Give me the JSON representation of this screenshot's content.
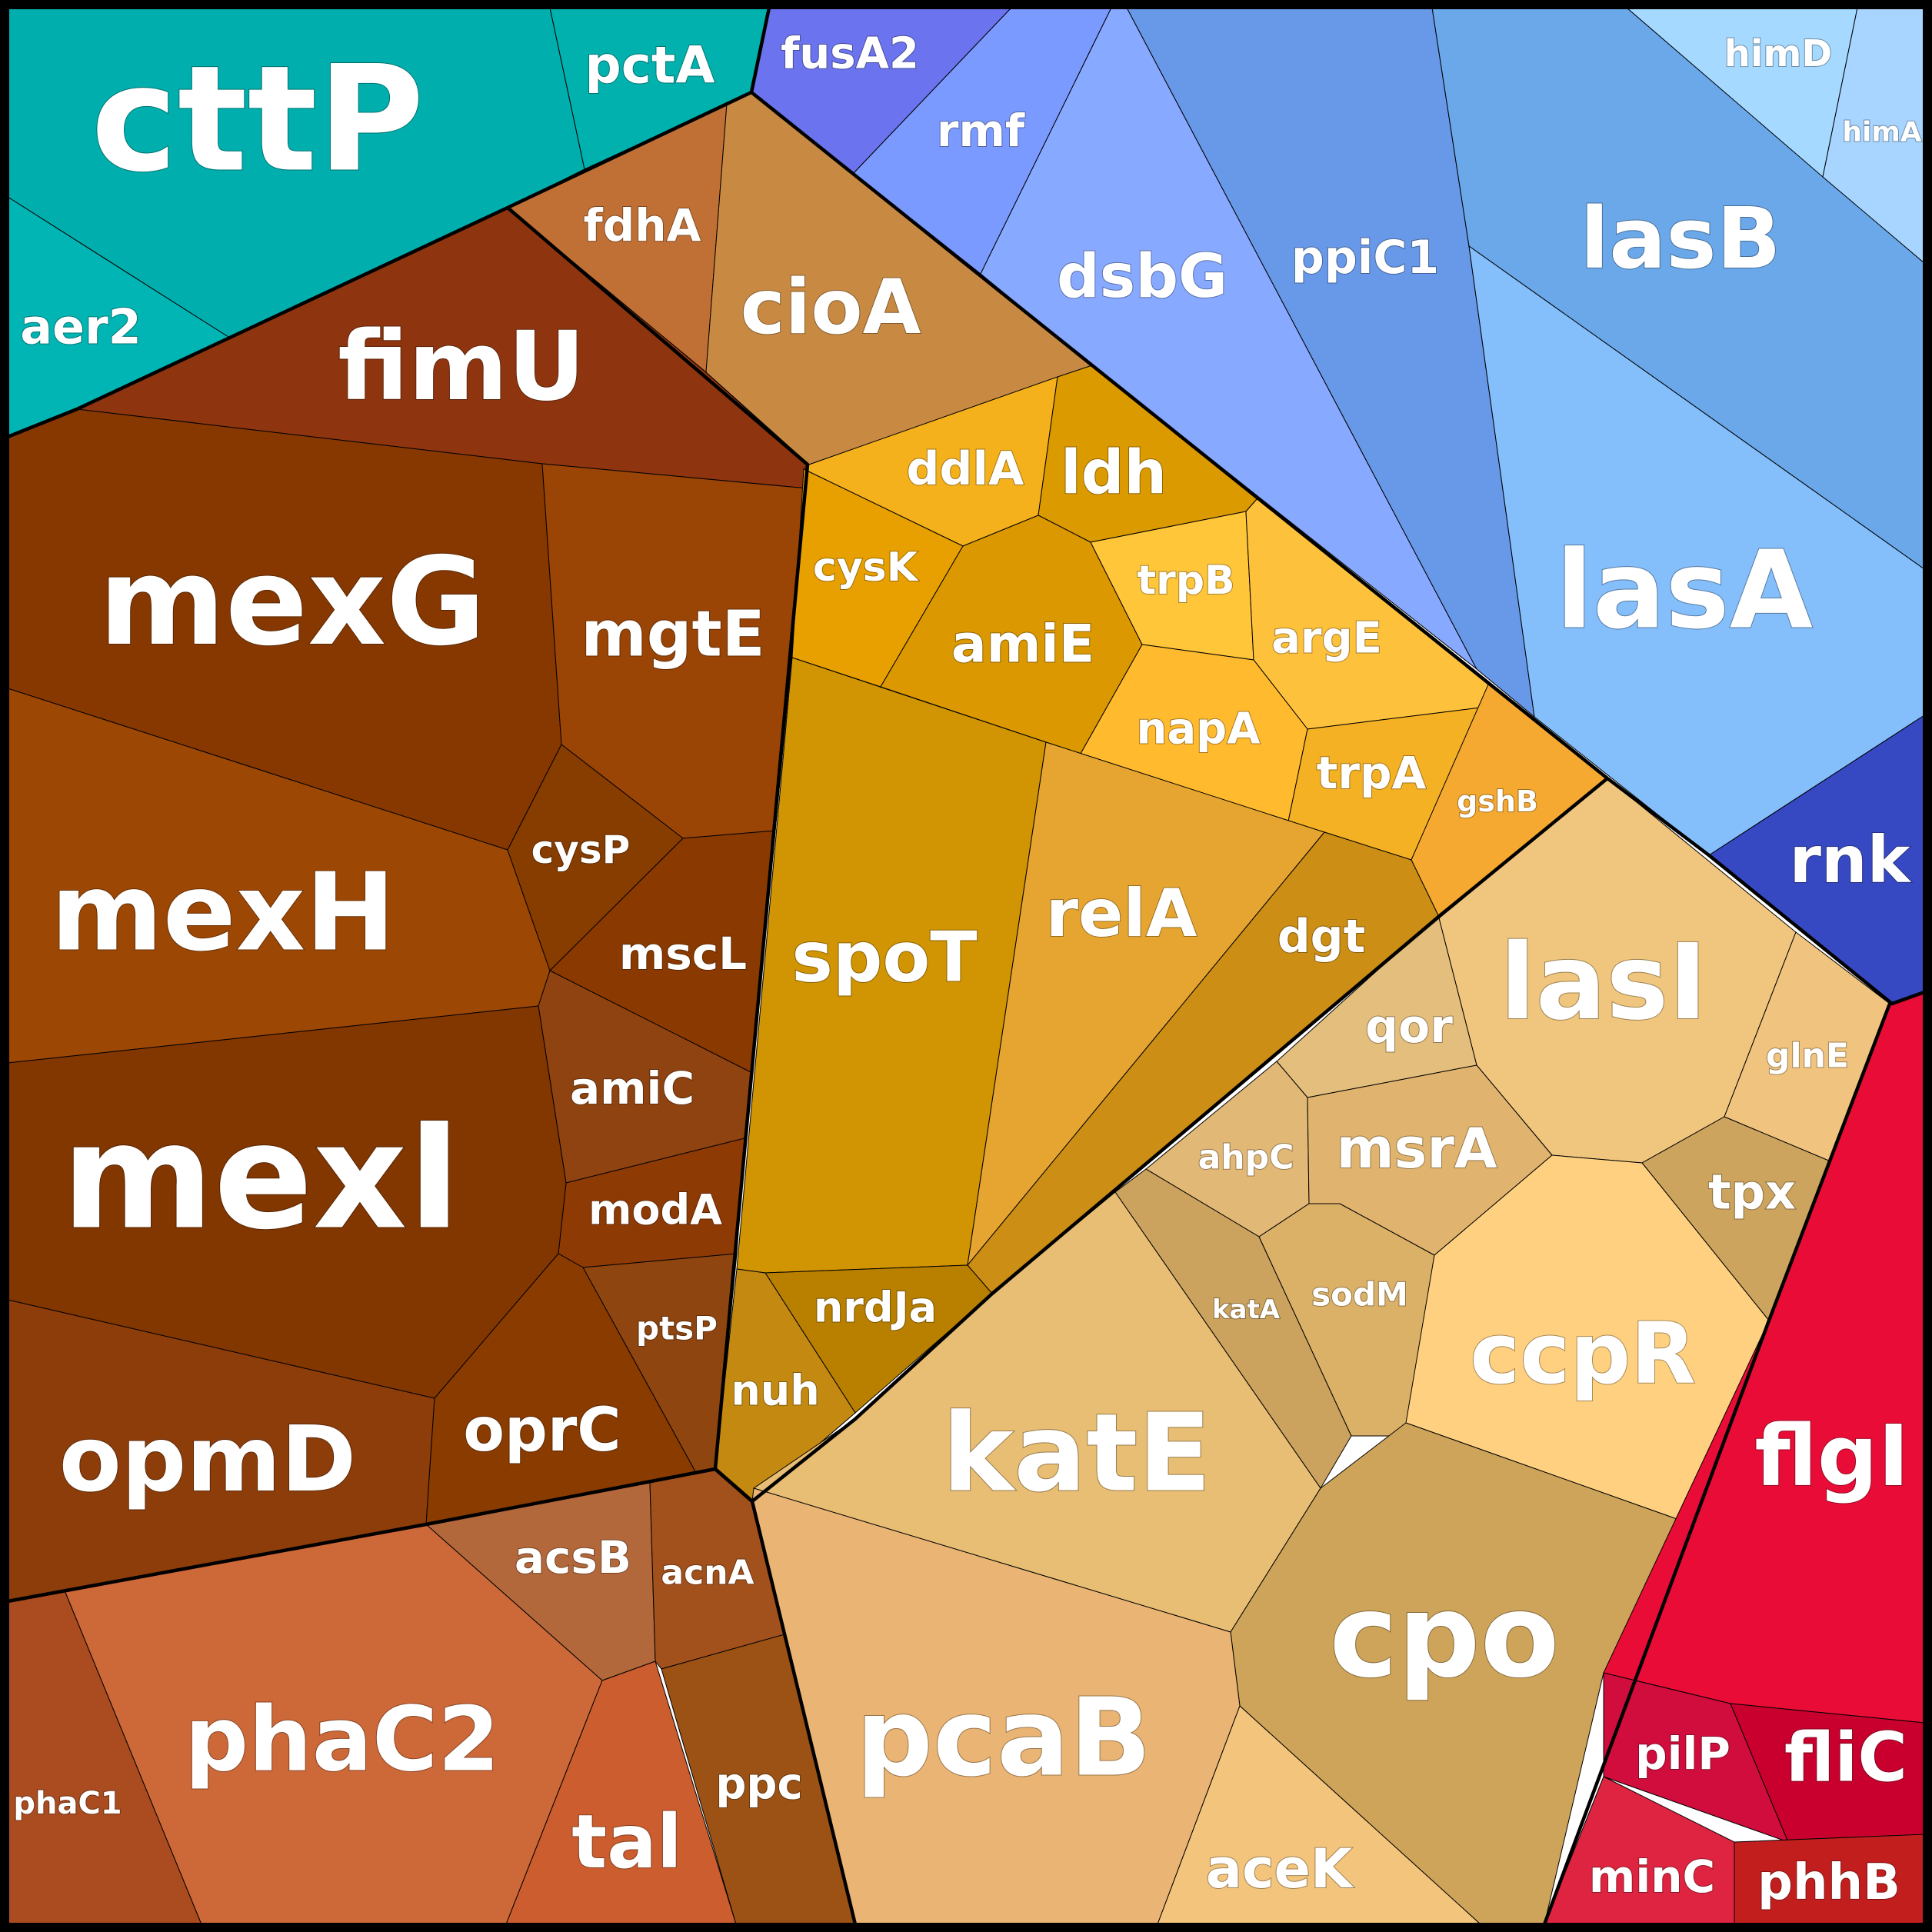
{
  "cells": [
    {
      "id": "cttP",
      "label": "cttP",
      "color": "#00AFAD"
    },
    {
      "id": "pctA",
      "label": "pctA",
      "color": "#00B1AE"
    },
    {
      "id": "aer2",
      "label": "aer2",
      "color": "#00B5B3"
    },
    {
      "id": "fusA2",
      "label": "fusA2",
      "color": "#6B73EE"
    },
    {
      "id": "rmf",
      "label": "rmf",
      "color": "#7B9AFF"
    },
    {
      "id": "dsbG",
      "label": "dsbG",
      "color": "#87A9FF"
    },
    {
      "id": "ppiC1",
      "label": "ppiC1",
      "color": "#6898E8"
    },
    {
      "id": "lasB",
      "label": "lasB",
      "color": "#6AA8EA"
    },
    {
      "id": "himD",
      "label": "himD",
      "color": "#A5D9FF"
    },
    {
      "id": "himA",
      "label": "himA",
      "color": "#A8D5FF"
    },
    {
      "id": "lasA",
      "label": "lasA",
      "color": "#84BEFB"
    },
    {
      "id": "rnk",
      "label": "rnk",
      "color": "#3649C2"
    },
    {
      "id": "fdhA",
      "label": "fdhA",
      "color": "#C07035"
    },
    {
      "id": "fimU",
      "label": "fimU",
      "color": "#8E3510"
    },
    {
      "id": "cioA",
      "label": "cioA",
      "color": "#C88A43"
    },
    {
      "id": "mexG",
      "label": "mexG",
      "color": "#873800"
    },
    {
      "id": "mgtE",
      "label": "mgtE",
      "color": "#9A4406"
    },
    {
      "id": "mexH",
      "label": "mexH",
      "color": "#9D4704"
    },
    {
      "id": "cysP",
      "label": "cysP",
      "color": "#873C00"
    },
    {
      "id": "mscL",
      "label": "mscL",
      "color": "#8A3A00"
    },
    {
      "id": "amiC",
      "label": "amiC",
      "color": "#8F4310"
    },
    {
      "id": "modA",
      "label": "modA",
      "color": "#8E3A05"
    },
    {
      "id": "mexI",
      "label": "mexI",
      "color": "#823600"
    },
    {
      "id": "ptsP",
      "label": "ptsP",
      "color": "#8E4510"
    },
    {
      "id": "opmD",
      "label": "opmD",
      "color": "#8D3D0A"
    },
    {
      "id": "oprC",
      "label": "oprC",
      "color": "#8A3B00"
    },
    {
      "id": "acsB",
      "label": "acsB",
      "color": "#B2683A"
    },
    {
      "id": "acnA",
      "label": "acnA",
      "color": "#A2501C"
    },
    {
      "id": "phaC1",
      "label": "phaC1",
      "color": "#AA4C20"
    },
    {
      "id": "phaC2",
      "label": "phaC2",
      "color": "#CD6838"
    },
    {
      "id": "tal",
      "label": "tal",
      "color": "#CB5D2E"
    },
    {
      "id": "ppc",
      "label": "ppc",
      "color": "#9C5214"
    },
    {
      "id": "ddlA",
      "label": "ddlA",
      "color": "#F5B11C"
    },
    {
      "id": "ldh",
      "label": "ldh",
      "color": "#DA9A00"
    },
    {
      "id": "cysK",
      "label": "cysK",
      "color": "#E8A000"
    },
    {
      "id": "amiE",
      "label": "amiE",
      "color": "#DB9800"
    },
    {
      "id": "trpB",
      "label": "trpB",
      "color": "#FFC63A"
    },
    {
      "id": "argE",
      "label": "argE",
      "color": "#FEC13C"
    },
    {
      "id": "napA",
      "label": "napA",
      "color": "#FFBA2E"
    },
    {
      "id": "trpA",
      "label": "trpA",
      "color": "#F5B124"
    },
    {
      "id": "gshB",
      "label": "gshB",
      "color": "#F5A930"
    },
    {
      "id": "spoT",
      "label": "spoT",
      "color": "#D19402"
    },
    {
      "id": "relA",
      "label": "relA",
      "color": "#E6A530"
    },
    {
      "id": "dgt",
      "label": "dgt",
      "color": "#CC8E14"
    },
    {
      "id": "nrdJa",
      "label": "nrdJa",
      "color": "#B98000"
    },
    {
      "id": "nuh",
      "label": "nuh",
      "color": "#C48910"
    },
    {
      "id": "lasI",
      "label": "lasI",
      "color": "#F0C67E"
    },
    {
      "id": "qor",
      "label": "qor",
      "color": "#E4BE7C"
    },
    {
      "id": "glnE",
      "label": "glnE",
      "color": "#F0C47E"
    },
    {
      "id": "ahpC",
      "label": "ahpC",
      "color": "#E2B876"
    },
    {
      "id": "msrA",
      "label": "msrA",
      "color": "#E0B46E"
    },
    {
      "id": "tpx",
      "label": "tpx",
      "color": "#CCA45E"
    },
    {
      "id": "katA",
      "label": "katA",
      "color": "#CBA25E"
    },
    {
      "id": "sodM",
      "label": "sodM",
      "color": "#DBB168"
    },
    {
      "id": "ccpR",
      "label": "ccpR",
      "color": "#FED080"
    },
    {
      "id": "katE",
      "label": "katE",
      "color": "#E8BE74"
    },
    {
      "id": "cpo",
      "label": "cpo",
      "color": "#CEA45A"
    },
    {
      "id": "pcaB",
      "label": "pcaB",
      "color": "#EAB574"
    },
    {
      "id": "aceK",
      "label": "aceK",
      "color": "#F3C47C"
    },
    {
      "id": "flgI",
      "label": "flgI",
      "color": "#E90C36"
    },
    {
      "id": "pilP",
      "label": "pilP",
      "color": "#D00D3C"
    },
    {
      "id": "fliC",
      "label": "fliC",
      "color": "#C9002E"
    },
    {
      "id": "minC",
      "label": "minC",
      "color": "#DE2440"
    },
    {
      "id": "phhB",
      "label": "phhB",
      "color": "#C21E1E"
    }
  ]
}
